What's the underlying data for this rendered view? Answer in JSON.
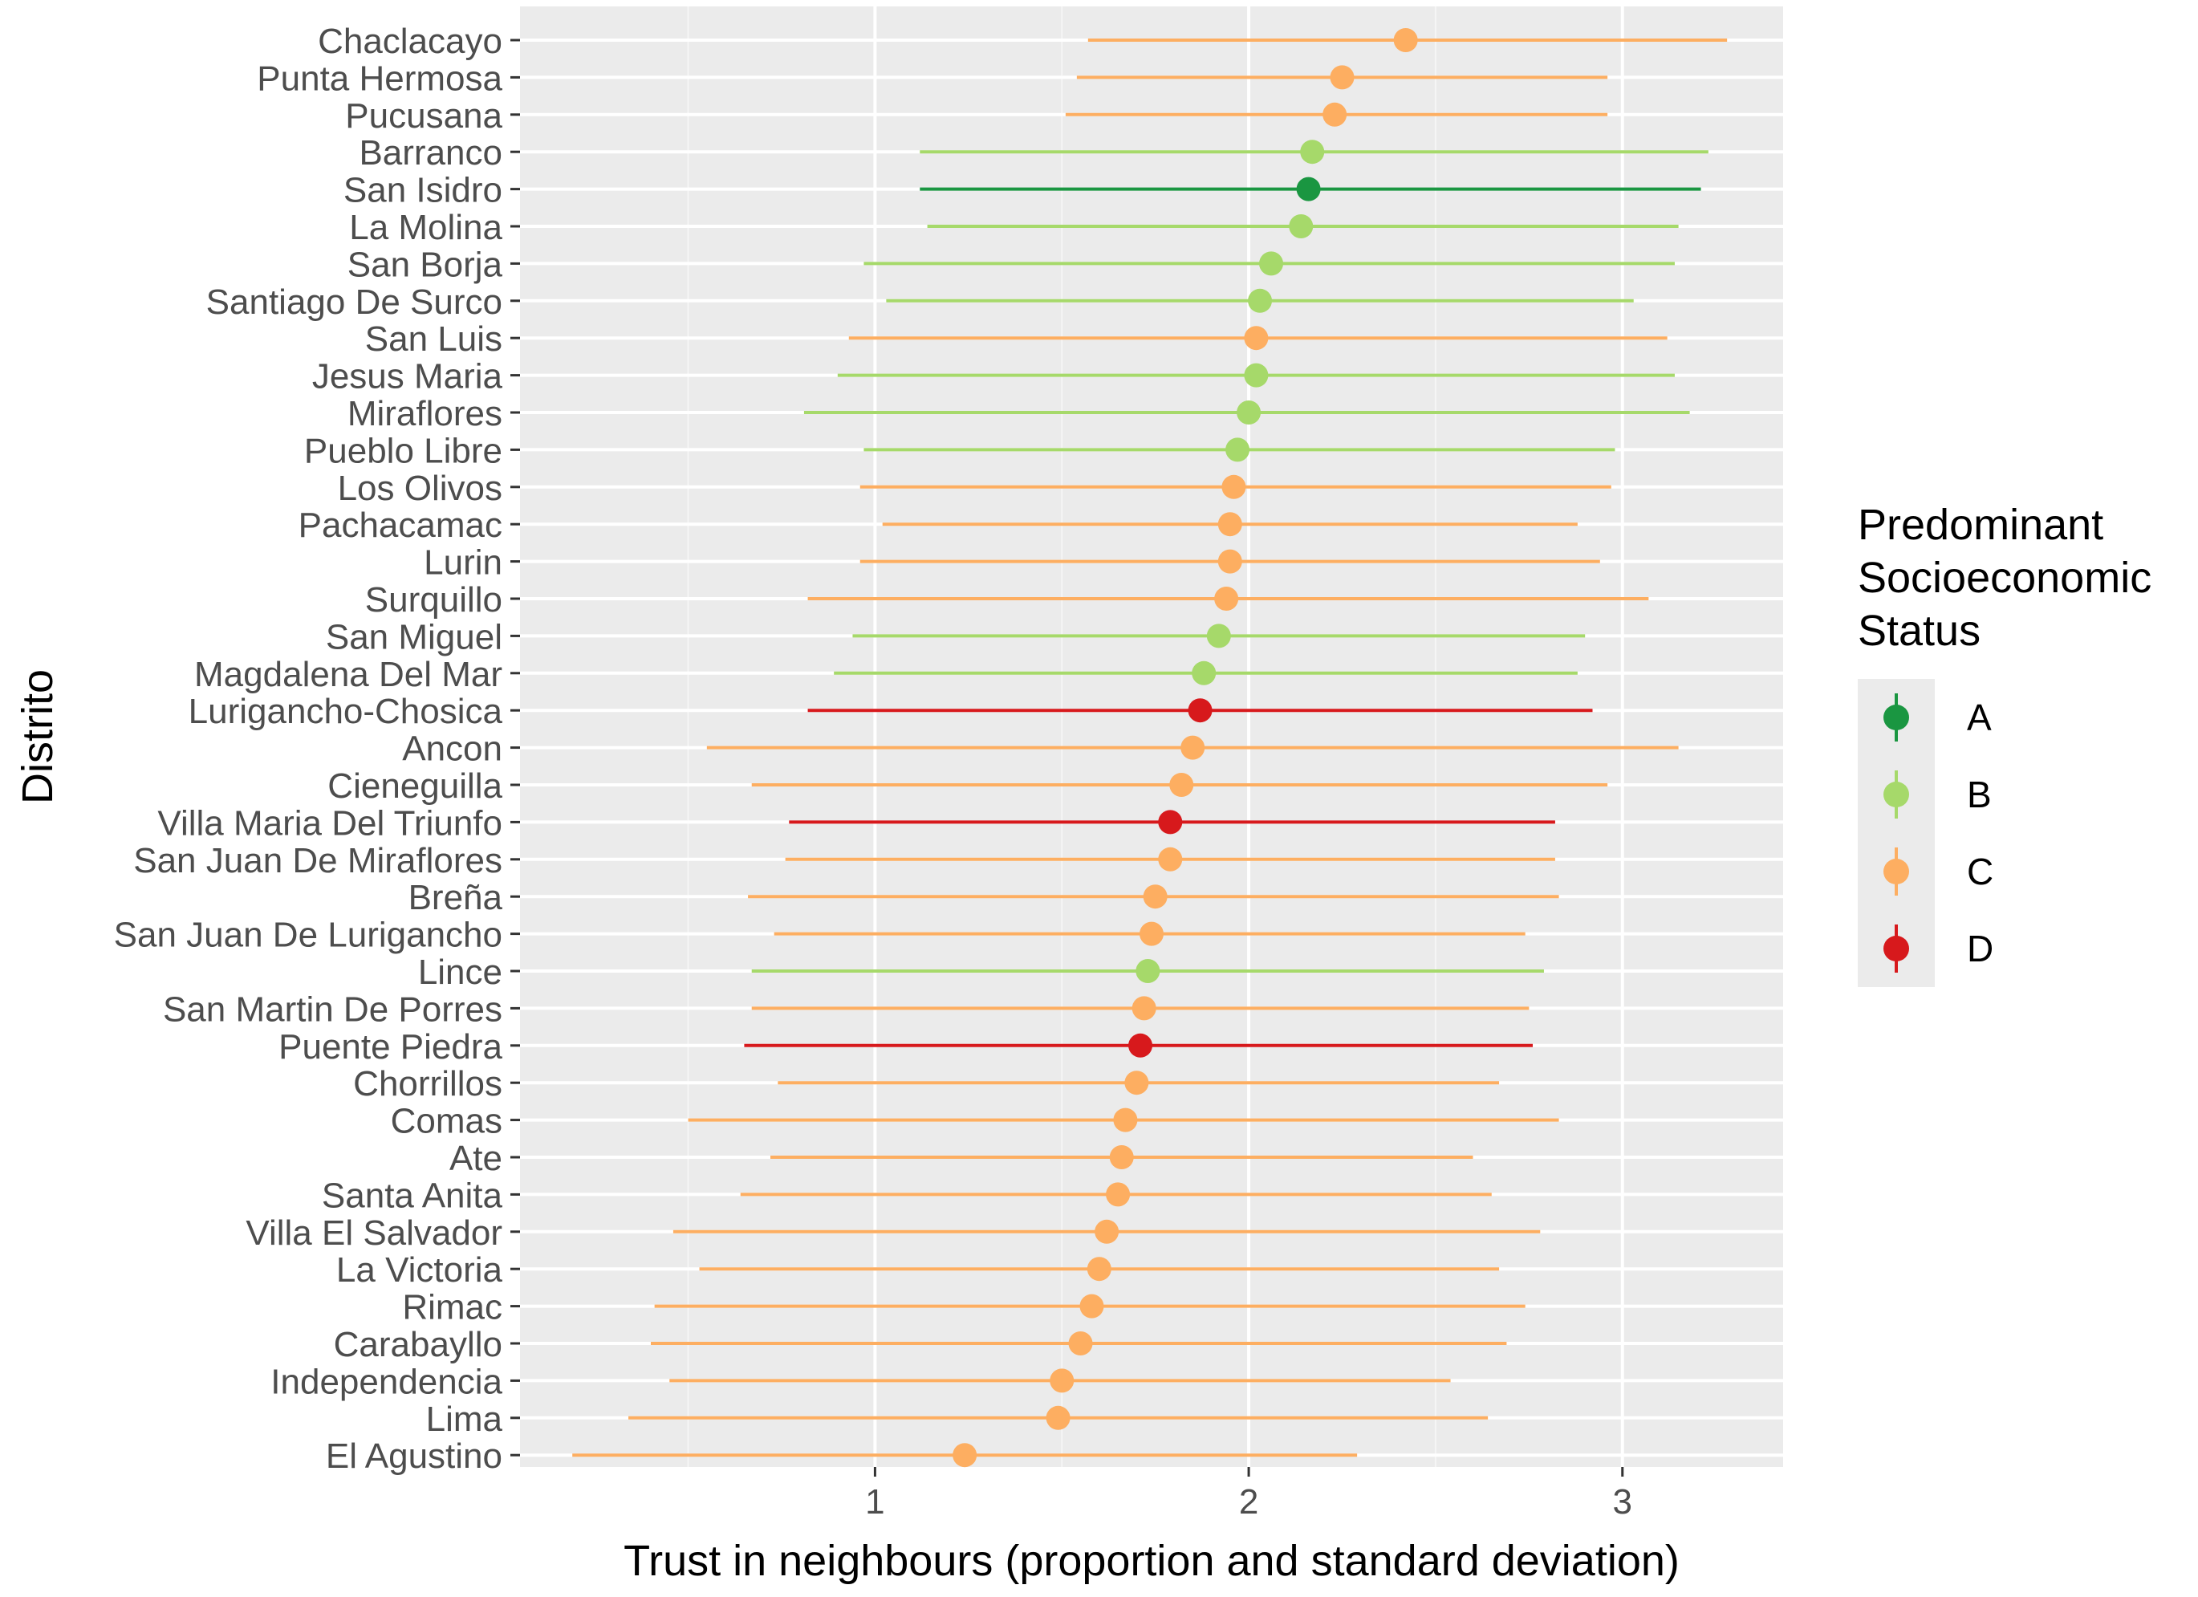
{
  "chart_data": {
    "type": "dot-errorbar",
    "xlabel": "Trust in neighbours (proportion and standard deviation)",
    "ylabel": "Distrito",
    "xlim": [
      0.05,
      3.43
    ],
    "xticks": [
      1,
      2,
      3
    ],
    "grid": true,
    "legend": {
      "title": [
        "Predominant",
        "Socioeconomic",
        "Status"
      ],
      "placement": "right",
      "items": [
        {
          "key": "A",
          "label": "A",
          "color": "#1a9641"
        },
        {
          "key": "B",
          "label": "B",
          "color": "#a6d96a"
        },
        {
          "key": "C",
          "label": "C",
          "color": "#fdae61"
        },
        {
          "key": "D",
          "label": "D",
          "color": "#d7191c"
        }
      ]
    },
    "rows": [
      {
        "district": "Chaclacayo",
        "value": 2.42,
        "low": 1.57,
        "high": 3.28,
        "status": "C"
      },
      {
        "district": "Punta Hermosa",
        "value": 2.25,
        "low": 1.54,
        "high": 2.96,
        "status": "C"
      },
      {
        "district": "Pucusana",
        "value": 2.23,
        "low": 1.51,
        "high": 2.96,
        "status": "C"
      },
      {
        "district": "Barranco",
        "value": 2.17,
        "low": 1.12,
        "high": 3.23,
        "status": "B"
      },
      {
        "district": "San Isidro",
        "value": 2.16,
        "low": 1.12,
        "high": 3.21,
        "status": "A"
      },
      {
        "district": "La Molina",
        "value": 2.14,
        "low": 1.14,
        "high": 3.15,
        "status": "B"
      },
      {
        "district": "San Borja",
        "value": 2.06,
        "low": 0.97,
        "high": 3.14,
        "status": "B"
      },
      {
        "district": "Santiago De Surco",
        "value": 2.03,
        "low": 1.03,
        "high": 3.03,
        "status": "B"
      },
      {
        "district": "San Luis",
        "value": 2.02,
        "low": 0.93,
        "high": 3.12,
        "status": "C"
      },
      {
        "district": "Jesus Maria",
        "value": 2.02,
        "low": 0.9,
        "high": 3.14,
        "status": "B"
      },
      {
        "district": "Miraflores",
        "value": 2.0,
        "low": 0.81,
        "high": 3.18,
        "status": "B"
      },
      {
        "district": "Pueblo Libre",
        "value": 1.97,
        "low": 0.97,
        "high": 2.98,
        "status": "B"
      },
      {
        "district": "Los Olivos",
        "value": 1.96,
        "low": 0.96,
        "high": 2.97,
        "status": "C"
      },
      {
        "district": "Pachacamac",
        "value": 1.95,
        "low": 1.02,
        "high": 2.88,
        "status": "C"
      },
      {
        "district": "Lurin",
        "value": 1.95,
        "low": 0.96,
        "high": 2.94,
        "status": "C"
      },
      {
        "district": "Surquillo",
        "value": 1.94,
        "low": 0.82,
        "high": 3.07,
        "status": "C"
      },
      {
        "district": "San Miguel",
        "value": 1.92,
        "low": 0.94,
        "high": 2.9,
        "status": "B"
      },
      {
        "district": "Magdalena Del Mar",
        "value": 1.88,
        "low": 0.89,
        "high": 2.88,
        "status": "B"
      },
      {
        "district": "Lurigancho-Chosica",
        "value": 1.87,
        "low": 0.82,
        "high": 2.92,
        "status": "D"
      },
      {
        "district": "Ancon",
        "value": 1.85,
        "low": 0.55,
        "high": 3.15,
        "status": "C"
      },
      {
        "district": "Cieneguilla",
        "value": 1.82,
        "low": 0.67,
        "high": 2.96,
        "status": "C"
      },
      {
        "district": "Villa Maria Del Triunfo",
        "value": 1.79,
        "low": 0.77,
        "high": 2.82,
        "status": "D"
      },
      {
        "district": "San Juan De Miraflores",
        "value": 1.79,
        "low": 0.76,
        "high": 2.82,
        "status": "C"
      },
      {
        "district": "Breña",
        "value": 1.75,
        "low": 0.66,
        "high": 2.83,
        "status": "C"
      },
      {
        "district": "San Juan De Lurigancho",
        "value": 1.74,
        "low": 0.73,
        "high": 2.74,
        "status": "C"
      },
      {
        "district": "Lince",
        "value": 1.73,
        "low": 0.67,
        "high": 2.79,
        "status": "B"
      },
      {
        "district": "San Martin De Porres",
        "value": 1.72,
        "low": 0.67,
        "high": 2.75,
        "status": "C"
      },
      {
        "district": "Puente Piedra",
        "value": 1.71,
        "low": 0.65,
        "high": 2.76,
        "status": "D"
      },
      {
        "district": "Chorrillos",
        "value": 1.7,
        "low": 0.74,
        "high": 2.67,
        "status": "C"
      },
      {
        "district": "Comas",
        "value": 1.67,
        "low": 0.5,
        "high": 2.83,
        "status": "C"
      },
      {
        "district": "Ate",
        "value": 1.66,
        "low": 0.72,
        "high": 2.6,
        "status": "C"
      },
      {
        "district": "Santa Anita",
        "value": 1.65,
        "low": 0.64,
        "high": 2.65,
        "status": "C"
      },
      {
        "district": "Villa El Salvador",
        "value": 1.62,
        "low": 0.46,
        "high": 2.78,
        "status": "C"
      },
      {
        "district": "La Victoria",
        "value": 1.6,
        "low": 0.53,
        "high": 2.67,
        "status": "C"
      },
      {
        "district": "Rimac",
        "value": 1.58,
        "low": 0.41,
        "high": 2.74,
        "status": "C"
      },
      {
        "district": "Carabayllo",
        "value": 1.55,
        "low": 0.4,
        "high": 2.69,
        "status": "C"
      },
      {
        "district": "Independencia",
        "value": 1.5,
        "low": 0.45,
        "high": 2.54,
        "status": "C"
      },
      {
        "district": "Lima",
        "value": 1.49,
        "low": 0.34,
        "high": 2.64,
        "status": "C"
      },
      {
        "district": "El Agustino",
        "value": 1.24,
        "low": 0.19,
        "high": 2.29,
        "status": "C"
      }
    ]
  }
}
